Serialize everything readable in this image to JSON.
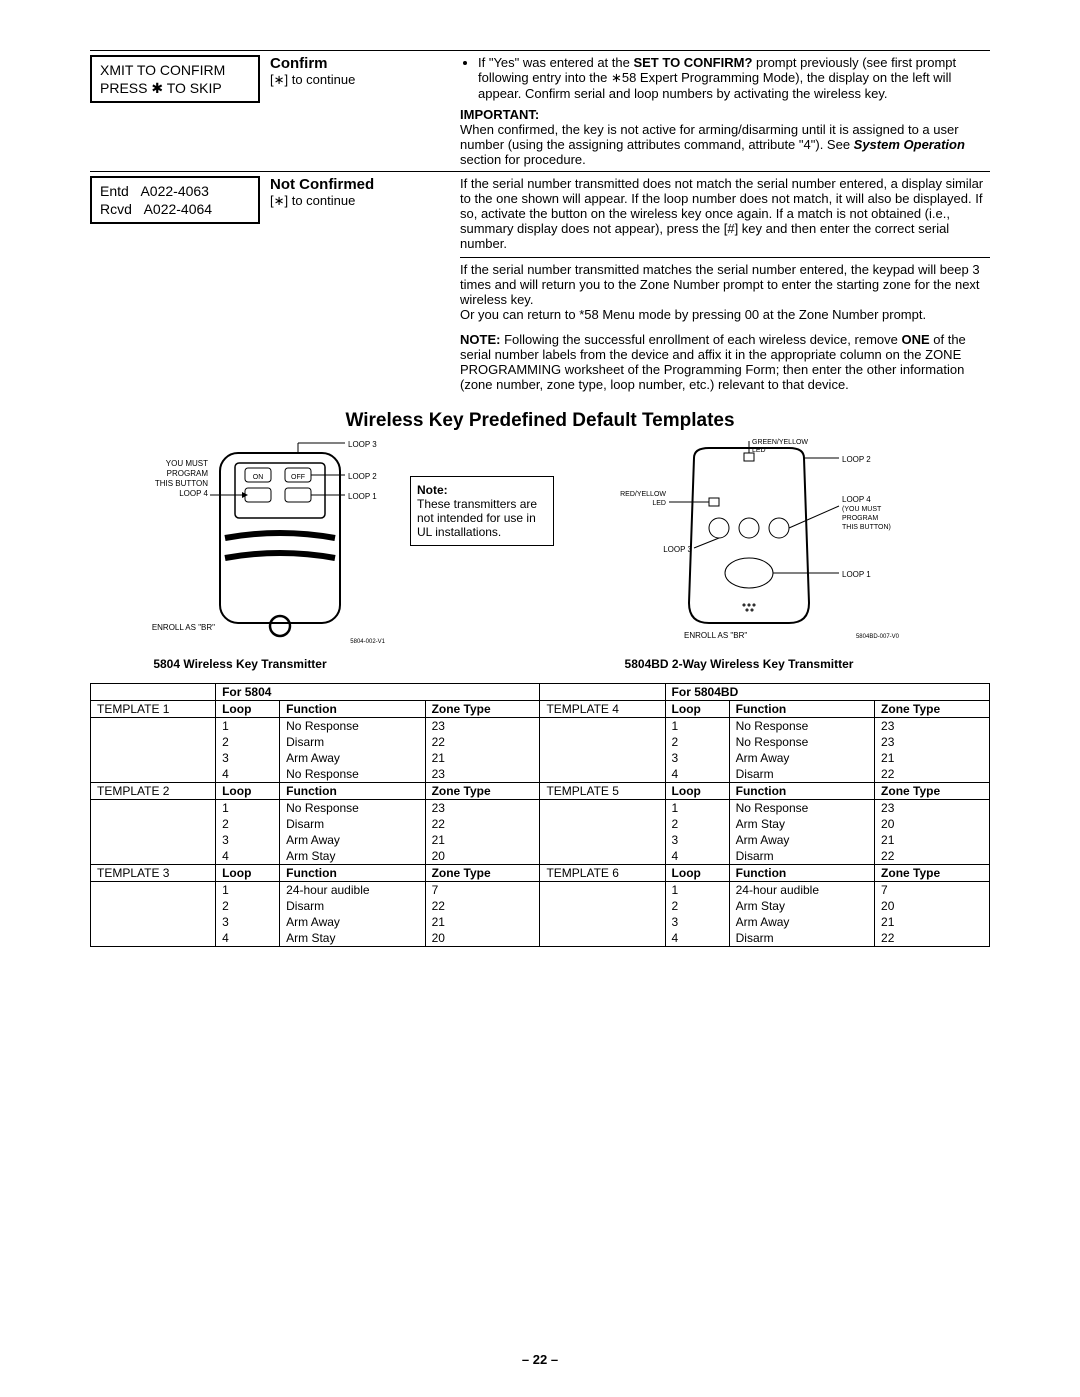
{
  "section1": {
    "lcd_line1": "XMIT TO CONFIRM",
    "lcd_line2": "PRESS ✱ TO SKIP",
    "title": "Confirm",
    "sub": "[∗] to continue",
    "bullet": "If \"Yes\" was entered at the ",
    "bullet_bold": "SET TO CONFIRM?",
    "bullet_after": " prompt previously (see first prompt following entry into the ∗58 Expert Programming Mode), the display on the left will appear. Confirm serial and loop numbers by activating the wireless key.",
    "important_label": "IMPORTANT:",
    "important_text": "When confirmed, the key is not active for arming/disarming until it is assigned to a user number (using the assigning attributes command, attribute \"4\"). See ",
    "important_bold": "System Operation",
    "important_after": " section for procedure."
  },
  "section2": {
    "lcd_line1": "Entd   A022-4063",
    "lcd_line2": "Rcvd   A022-4064",
    "title": "Not Confirmed",
    "sub": "[∗] to continue",
    "para1": "If the serial number transmitted does not match the serial number entered, a display similar to the one shown will appear. If the loop number does not match, it will also be displayed. If so, activate the button on the wireless key once again. If a match is not obtained (i.e., summary display does not appear), press the [#] key and then enter the correct serial number.",
    "para2a": "If the serial number transmitted matches the serial number entered, the keypad will beep 3 times and will return you to the Zone Number prompt to enter the starting zone for the next wireless key.",
    "para2b": "Or you can return to *58 Menu mode by pressing 00 at the Zone Number prompt.",
    "note_label": "NOTE:",
    "note_text1": " Following  the successful enrollment of each wireless device, remove ",
    "note_bold": "ONE",
    "note_text2": " of the serial number labels from the device and affix it in the appropriate column on the ZONE PROGRAMMING worksheet of the Programming Form; then enter the other information (zone number, zone type, loop number, etc.) relevant to that device."
  },
  "heading": "Wireless Key Predefined Default Templates",
  "diagram_left": {
    "loop3": "LOOP 3",
    "loop2": "LOOP 2",
    "loop1": "LOOP 1",
    "you_must": "YOU MUST",
    "program": "PROGRAM",
    "this_button": "THIS BUTTON",
    "loop4": "LOOP 4",
    "on": "ON",
    "off": "OFF",
    "enroll": "ENROLL AS \"BR\"",
    "partno": "5804-002-V1",
    "caption": "5804 Wireless Key Transmitter"
  },
  "note_box": {
    "title": "Note:",
    "text": "These transmitters are not intended for use in UL installations."
  },
  "diagram_right": {
    "green": "GREEN/YELLOW",
    "led": "LED",
    "loop2": "LOOP 2",
    "red": "RED/YELLOW",
    "led2": "LED",
    "loop4": "LOOP 4",
    "you_must": "(YOU MUST",
    "program": "PROGRAM",
    "this_button": "THIS BUTTON)",
    "loop3": "LOOP 3",
    "loop1": "LOOP 1",
    "enroll": "ENROLL AS \"BR\"",
    "partno": "5804BD-007-V0",
    "caption": "5804BD 2-Way Wireless Key Transmitter"
  },
  "table": {
    "for5804": "For 5804",
    "for5804bd": "For 5804BD",
    "h_loop": "Loop",
    "h_function": "Function",
    "h_zonetype": "Zone Type",
    "t1": "TEMPLATE 1",
    "t2": "TEMPLATE 2",
    "t3": "TEMPLATE 3",
    "t4": "TEMPLATE 4",
    "t5": "TEMPLATE 5",
    "t6": "TEMPLATE 6",
    "rows_left": [
      [
        [
          "1",
          "No Response",
          "23"
        ],
        [
          "2",
          "Disarm",
          "22"
        ],
        [
          "3",
          "Arm Away",
          "21"
        ],
        [
          "4",
          "No Response",
          "23"
        ]
      ],
      [
        [
          "1",
          "No Response",
          "23"
        ],
        [
          "2",
          "Disarm",
          "22"
        ],
        [
          "3",
          "Arm Away",
          "21"
        ],
        [
          "4",
          "Arm Stay",
          "20"
        ]
      ],
      [
        [
          "1",
          "24-hour audible",
          "7"
        ],
        [
          "2",
          "Disarm",
          "22"
        ],
        [
          "3",
          "Arm Away",
          "21"
        ],
        [
          "4",
          "Arm Stay",
          "20"
        ]
      ]
    ],
    "rows_right": [
      [
        [
          "1",
          "No Response",
          "23"
        ],
        [
          "2",
          "No Response",
          "23"
        ],
        [
          "3",
          "Arm Away",
          "21"
        ],
        [
          "4",
          "Disarm",
          "22"
        ]
      ],
      [
        [
          "1",
          "No Response",
          "23"
        ],
        [
          "2",
          "Arm Stay",
          "20"
        ],
        [
          "3",
          "Arm Away",
          "21"
        ],
        [
          "4",
          "Disarm",
          "22"
        ]
      ],
      [
        [
          "1",
          "24-hour audible",
          "7"
        ],
        [
          "2",
          "Arm Stay",
          "20"
        ],
        [
          "3",
          "Arm Away",
          "21"
        ],
        [
          "4",
          "Disarm",
          "22"
        ]
      ]
    ]
  },
  "pagenum": "– 22 –"
}
